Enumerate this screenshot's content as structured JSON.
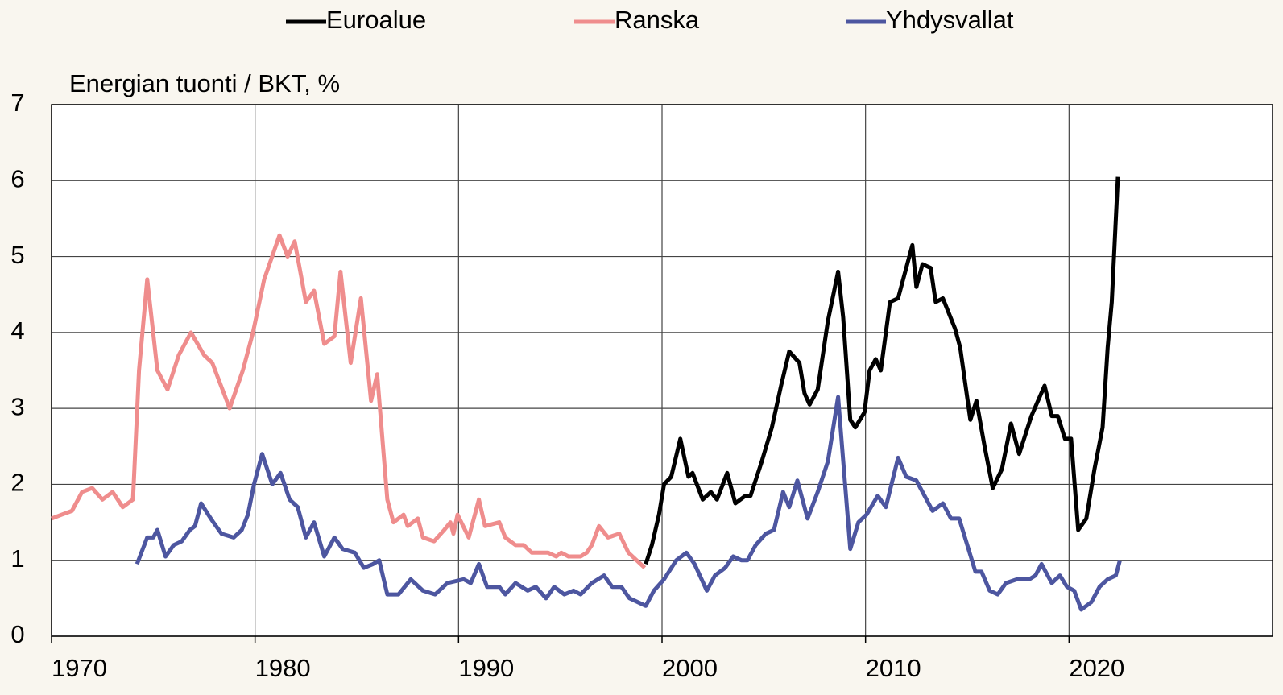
{
  "chart_data": {
    "type": "line",
    "ylabel": "Energian tuonti / BKT, %",
    "xlim": [
      1970,
      2030
    ],
    "xticks": [
      1970,
      1980,
      1990,
      2000,
      2010,
      2020
    ],
    "ylim": [
      0,
      7
    ],
    "yticks": [
      0,
      1,
      2,
      3,
      4,
      5,
      6,
      7
    ],
    "grid": true,
    "legend": "top",
    "series": [
      {
        "name": "Euroalue",
        "color": "#000000",
        "x": [
          1999.2,
          1999.5,
          1999.85,
          2000.1,
          2000.45,
          2000.9,
          2001.3,
          2001.5,
          2002.0,
          2002.4,
          2002.7,
          2003.2,
          2003.6,
          2004.1,
          2004.35,
          2004.9,
          2005.4,
          2005.85,
          2006.25,
          2006.75,
          2007.0,
          2007.25,
          2007.65,
          2008.15,
          2008.65,
          2008.9,
          2009.25,
          2009.5,
          2009.95,
          2010.2,
          2010.5,
          2010.75,
          2011.2,
          2011.6,
          2012.3,
          2012.5,
          2012.8,
          2013.2,
          2013.45,
          2013.8,
          2014.4,
          2014.65,
          2015.15,
          2015.45,
          2015.85,
          2016.25,
          2016.7,
          2017.15,
          2017.55,
          2018.15,
          2018.8,
          2019.15,
          2019.45,
          2019.8,
          2020.1,
          2020.45,
          2020.85,
          2021.25,
          2021.65,
          2021.9,
          2022.1,
          2022.4
        ],
        "values": [
          0.95,
          1.2,
          1.6,
          2.0,
          2.1,
          2.6,
          2.1,
          2.15,
          1.8,
          1.9,
          1.8,
          2.15,
          1.75,
          1.85,
          1.85,
          2.3,
          2.75,
          3.3,
          3.75,
          3.6,
          3.2,
          3.05,
          3.25,
          4.15,
          4.8,
          4.2,
          2.85,
          2.75,
          2.95,
          3.5,
          3.65,
          3.5,
          4.4,
          4.45,
          5.15,
          4.6,
          4.9,
          4.85,
          4.4,
          4.45,
          4.05,
          3.8,
          2.85,
          3.1,
          2.5,
          1.95,
          2.2,
          2.8,
          2.4,
          2.9,
          3.3,
          2.9,
          2.9,
          2.6,
          2.6,
          1.4,
          1.55,
          2.2,
          2.75,
          3.8,
          4.4,
          6.05
        ]
      },
      {
        "name": "Ranska",
        "color": "#ef8d8d",
        "x": [
          1970.0,
          1970.5,
          1971.0,
          1971.5,
          1972.0,
          1972.5,
          1973.0,
          1973.5,
          1974.0,
          1974.3,
          1974.7,
          1975.2,
          1975.7,
          1976.25,
          1976.85,
          1977.5,
          1977.9,
          1978.75,
          1979.4,
          1979.9,
          1980.45,
          1981.2,
          1981.6,
          1981.95,
          1982.5,
          1982.9,
          1983.4,
          1983.9,
          1984.2,
          1984.7,
          1985.2,
          1985.7,
          1986.0,
          1986.5,
          1986.8,
          1987.3,
          1987.5,
          1988.0,
          1988.25,
          1988.8,
          1989.3,
          1989.6,
          1989.75,
          1989.95,
          1990.5,
          1991.0,
          1991.3,
          1992.0,
          1992.3,
          1992.8,
          1993.2,
          1993.6,
          1994.4,
          1994.8,
          1995.05,
          1995.4,
          1996.0,
          1996.3,
          1996.55,
          1996.9,
          1997.35,
          1997.9,
          1998.35,
          1999.15
        ],
        "values": [
          1.55,
          1.6,
          1.65,
          1.9,
          1.95,
          1.8,
          1.9,
          1.7,
          1.8,
          3.5,
          4.7,
          3.5,
          3.25,
          3.7,
          4.0,
          3.7,
          3.6,
          3.0,
          3.5,
          4.0,
          4.7,
          5.28,
          5.0,
          5.2,
          4.4,
          4.55,
          3.85,
          3.95,
          4.8,
          3.6,
          4.45,
          3.1,
          3.45,
          1.8,
          1.5,
          1.6,
          1.45,
          1.55,
          1.3,
          1.25,
          1.4,
          1.5,
          1.35,
          1.6,
          1.3,
          1.8,
          1.45,
          1.5,
          1.3,
          1.2,
          1.2,
          1.1,
          1.1,
          1.05,
          1.1,
          1.05,
          1.05,
          1.1,
          1.2,
          1.45,
          1.3,
          1.35,
          1.1,
          0.9
        ]
      },
      {
        "name": "Yhdysvallat",
        "color": "#4d56a0",
        "x": [
          1974.2,
          1974.7,
          1975.0,
          1975.2,
          1975.6,
          1976.0,
          1976.4,
          1976.8,
          1977.05,
          1977.35,
          1977.7,
          1977.95,
          1978.35,
          1978.95,
          1979.35,
          1979.65,
          1979.95,
          1980.35,
          1980.85,
          1981.25,
          1981.7,
          1982.1,
          1982.5,
          1982.9,
          1983.4,
          1983.9,
          1984.3,
          1984.9,
          1985.35,
          1985.8,
          1986.1,
          1986.5,
          1987.05,
          1987.65,
          1988.25,
          1988.85,
          1989.45,
          1990.25,
          1990.6,
          1991.0,
          1991.4,
          1992.0,
          1992.3,
          1992.8,
          1993.4,
          1993.8,
          1994.3,
          1994.7,
          1995.2,
          1995.65,
          1996.0,
          1996.55,
          1997.15,
          1997.55,
          1998.0,
          1998.4,
          1999.2,
          1999.6,
          2000.1,
          2000.7,
          2001.2,
          2001.6,
          2002.2,
          2002.6,
          2003.1,
          2003.5,
          2003.9,
          2004.2,
          2004.6,
          2005.1,
          2005.5,
          2005.95,
          2006.25,
          2006.65,
          2007.15,
          2007.65,
          2008.15,
          2008.65,
          2009.25,
          2009.65,
          2010.05,
          2010.6,
          2011.0,
          2011.6,
          2012.0,
          2012.5,
          2012.9,
          2013.3,
          2013.8,
          2014.2,
          2014.6,
          2015.0,
          2015.4,
          2015.7,
          2016.1,
          2016.5,
          2016.9,
          2017.45,
          2018.05,
          2018.35,
          2018.65,
          2019.15,
          2019.55,
          2019.9,
          2020.25,
          2020.6,
          2021.1,
          2021.5,
          2021.9,
          2022.3,
          2022.5
        ],
        "values": [
          0.95,
          1.3,
          1.3,
          1.4,
          1.05,
          1.2,
          1.25,
          1.4,
          1.45,
          1.75,
          1.6,
          1.5,
          1.35,
          1.3,
          1.4,
          1.6,
          2.0,
          2.4,
          2.0,
          2.15,
          1.8,
          1.7,
          1.3,
          1.5,
          1.05,
          1.3,
          1.15,
          1.1,
          0.9,
          0.95,
          1.0,
          0.55,
          0.55,
          0.75,
          0.6,
          0.55,
          0.7,
          0.75,
          0.7,
          0.95,
          0.65,
          0.65,
          0.55,
          0.7,
          0.6,
          0.65,
          0.5,
          0.65,
          0.55,
          0.6,
          0.55,
          0.7,
          0.8,
          0.65,
          0.65,
          0.5,
          0.4,
          0.6,
          0.75,
          1.0,
          1.1,
          0.95,
          0.6,
          0.8,
          0.9,
          1.05,
          1.0,
          1.0,
          1.2,
          1.35,
          1.4,
          1.9,
          1.7,
          2.05,
          1.55,
          1.9,
          2.3,
          3.15,
          1.15,
          1.5,
          1.6,
          1.85,
          1.7,
          2.35,
          2.1,
          2.05,
          1.85,
          1.65,
          1.75,
          1.55,
          1.55,
          1.2,
          0.85,
          0.85,
          0.6,
          0.55,
          0.7,
          0.75,
          0.75,
          0.8,
          0.95,
          0.7,
          0.8,
          0.65,
          0.6,
          0.35,
          0.45,
          0.65,
          0.75,
          0.8,
          1.0
        ]
      }
    ]
  }
}
